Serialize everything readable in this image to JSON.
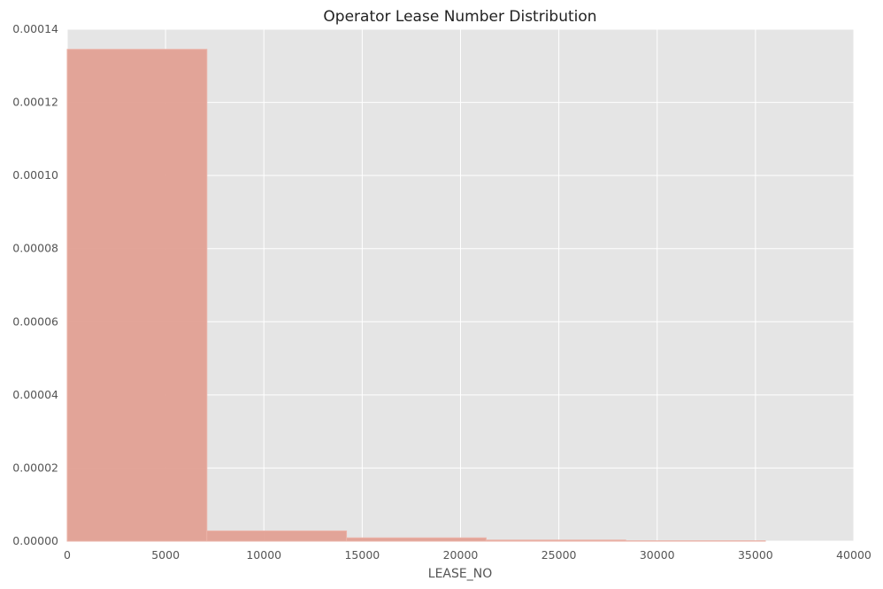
{
  "chart_data": {
    "type": "bar",
    "title": "Operator Lease Number Distribution",
    "xlabel": "LEASE_NO",
    "ylabel": "",
    "xlim": [
      0,
      40000
    ],
    "ylim": [
      0,
      0.00014
    ],
    "x_ticks": [
      "0",
      "5000",
      "10000",
      "15000",
      "20000",
      "25000",
      "30000",
      "35000",
      "40000"
    ],
    "y_ticks": [
      "0.00000",
      "0.00002",
      "0.00004",
      "0.00006",
      "0.00008",
      "0.00010",
      "0.00012",
      "0.00014"
    ],
    "grid": true,
    "bins": [
      {
        "x0": 0,
        "x1": 7100,
        "value": 0.0001345
      },
      {
        "x0": 7100,
        "x1": 14200,
        "value": 2.8e-06
      },
      {
        "x0": 14200,
        "x1": 21300,
        "value": 9e-07
      },
      {
        "x0": 21300,
        "x1": 28400,
        "value": 3e-07
      },
      {
        "x0": 28400,
        "x1": 35500,
        "value": 1e-07
      }
    ],
    "colors": {
      "background": "#e5e5e5",
      "grid": "#ffffff",
      "bar": "#e2a093"
    }
  }
}
